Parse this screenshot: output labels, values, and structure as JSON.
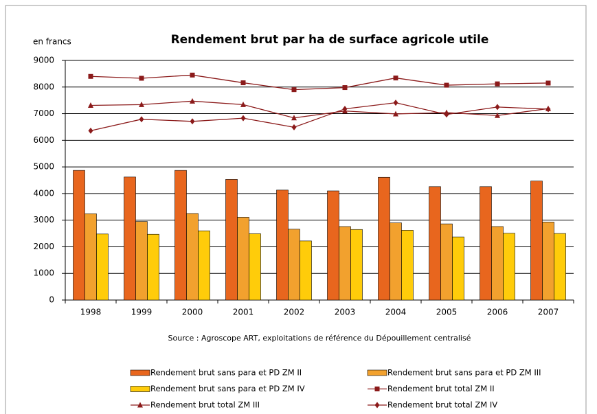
{
  "chart_data": {
    "type": "bar",
    "title": "Rendement brut par ha de surface agricole utile",
    "y_label": "en francs",
    "source": "Source : Agroscope ART, exploitations de référence du Dépouillement centralisé",
    "categories": [
      "1998",
      "1999",
      "2000",
      "2001",
      "2002",
      "2003",
      "2004",
      "2005",
      "2006",
      "2007"
    ],
    "ylim": [
      0,
      9000
    ],
    "yticks": [
      0,
      1000,
      2000,
      3000,
      4000,
      5000,
      6000,
      7000,
      8000,
      9000
    ],
    "grid": true,
    "series": [
      {
        "name": "Rendement brut sans para et PD ZM II",
        "type": "bar",
        "color": "#E8661E",
        "values": [
          4870,
          4620,
          4870,
          4530,
          4130,
          4100,
          4610,
          4260,
          4260,
          4470
        ]
      },
      {
        "name": "Rendement brut sans para et PD ZM III",
        "type": "bar",
        "color": "#F2A12E",
        "values": [
          3240,
          2950,
          3250,
          3110,
          2660,
          2760,
          2900,
          2860,
          2760,
          2930
        ]
      },
      {
        "name": "Rendement brut sans para et PD ZM IV",
        "type": "bar",
        "color": "#FFCC0A",
        "values": [
          2480,
          2470,
          2600,
          2490,
          2220,
          2650,
          2620,
          2370,
          2510,
          2500
        ]
      },
      {
        "name": "Rendement brut total ZM II",
        "type": "line",
        "marker": "square",
        "color": "#8B1A1A",
        "values": [
          8400,
          8330,
          8450,
          8160,
          7900,
          7980,
          8340,
          8070,
          8120,
          8150
        ]
      },
      {
        "name": "Rendement brut total ZM III",
        "type": "line",
        "marker": "triangle",
        "color": "#8B1A1A",
        "values": [
          7310,
          7340,
          7470,
          7340,
          6840,
          7100,
          6990,
          7040,
          6930,
          7190
        ]
      },
      {
        "name": "Rendement brut total ZM IV",
        "type": "line",
        "marker": "diamond",
        "color": "#8B1A1A",
        "values": [
          6360,
          6790,
          6710,
          6830,
          6490,
          7180,
          7410,
          6970,
          7250,
          7170
        ]
      }
    ]
  }
}
